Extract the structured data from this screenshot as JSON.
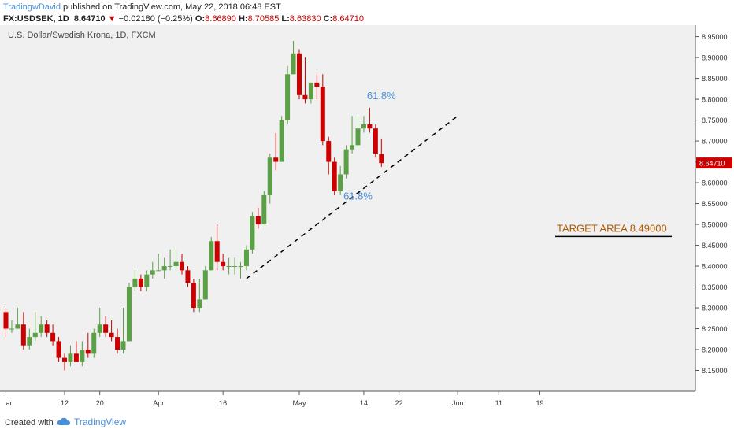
{
  "header": {
    "author": "TradingwDavid",
    "published_text": "published on TradingView.com, May 22, 2018 06:48 EST",
    "symbol": "FX:USDSEK, 1D",
    "last": "8.64710",
    "change_arrow": "▼",
    "change": "−0.02180 (−0.25%)",
    "open_label": "O:",
    "open": "8.66890",
    "high_label": "H:",
    "high": "8.70585",
    "low_label": "L:",
    "low": "8.63830",
    "close_label": "C:",
    "close": "8.64710"
  },
  "footer": {
    "created_with": "Created with",
    "brand": "TradingView",
    "brand_icon": "cloud-icon"
  },
  "colors": {
    "up": "#5b9f46",
    "down": "#cc0000",
    "fib": "#4a90d9",
    "target": "#b35900",
    "background": "#f0f0f0"
  },
  "chart_data": {
    "type": "candlestick",
    "title": "U.S. Dollar/Swedish Krona, 1D, FXCM",
    "ylim": [
      8.1,
      8.97
    ],
    "y_ticks": [
      "8.15000",
      "8.20000",
      "8.25000",
      "8.30000",
      "8.35000",
      "8.40000",
      "8.45000",
      "8.50000",
      "8.55000",
      "8.60000",
      "8.65000",
      "8.70000",
      "8.75000",
      "8.80000",
      "8.85000",
      "8.90000",
      "8.95000"
    ],
    "y_tick_values": [
      8.15,
      8.2,
      8.25,
      8.3,
      8.35,
      8.4,
      8.45,
      8.5,
      8.55,
      8.6,
      8.65,
      8.7,
      8.75,
      8.8,
      8.85,
      8.9,
      8.95
    ],
    "x_ticks": [
      {
        "label": "ar",
        "index": 0
      },
      {
        "label": "12",
        "index": 10
      },
      {
        "label": "20",
        "index": 16
      },
      {
        "label": "Apr",
        "index": 26
      },
      {
        "label": "16",
        "index": 37
      },
      {
        "label": "May",
        "index": 50
      },
      {
        "label": "14",
        "index": 61
      },
      {
        "label": "22",
        "index": 67
      },
      {
        "label": "Jun",
        "index": 77
      },
      {
        "label": "11",
        "index": 84
      },
      {
        "label": "19",
        "index": 91
      }
    ],
    "last_price_label": "8.64710",
    "last_price": 8.6471,
    "candles": [
      {
        "o": 8.29,
        "h": 8.3,
        "l": 8.23,
        "c": 8.25
      },
      {
        "o": 8.25,
        "h": 8.27,
        "l": 8.24,
        "c": 8.25
      },
      {
        "o": 8.25,
        "h": 8.3,
        "l": 8.25,
        "c": 8.26
      },
      {
        "o": 8.26,
        "h": 8.29,
        "l": 8.2,
        "c": 8.21
      },
      {
        "o": 8.21,
        "h": 8.25,
        "l": 8.2,
        "c": 8.23
      },
      {
        "o": 8.23,
        "h": 8.29,
        "l": 8.22,
        "c": 8.24
      },
      {
        "o": 8.24,
        "h": 8.28,
        "l": 8.23,
        "c": 8.26
      },
      {
        "o": 8.26,
        "h": 8.27,
        "l": 8.23,
        "c": 8.24
      },
      {
        "o": 8.24,
        "h": 8.26,
        "l": 8.21,
        "c": 8.22
      },
      {
        "o": 8.22,
        "h": 8.23,
        "l": 8.17,
        "c": 8.18
      },
      {
        "o": 8.18,
        "h": 8.19,
        "l": 8.15,
        "c": 8.17
      },
      {
        "o": 8.17,
        "h": 8.21,
        "l": 8.16,
        "c": 8.19
      },
      {
        "o": 8.19,
        "h": 8.22,
        "l": 8.17,
        "c": 8.17
      },
      {
        "o": 8.17,
        "h": 8.22,
        "l": 8.16,
        "c": 8.2
      },
      {
        "o": 8.2,
        "h": 8.24,
        "l": 8.18,
        "c": 8.19
      },
      {
        "o": 8.19,
        "h": 8.25,
        "l": 8.18,
        "c": 8.24
      },
      {
        "o": 8.24,
        "h": 8.3,
        "l": 8.23,
        "c": 8.26
      },
      {
        "o": 8.26,
        "h": 8.28,
        "l": 8.23,
        "c": 8.24
      },
      {
        "o": 8.24,
        "h": 8.27,
        "l": 8.22,
        "c": 8.23
      },
      {
        "o": 8.23,
        "h": 8.25,
        "l": 8.19,
        "c": 8.2
      },
      {
        "o": 8.2,
        "h": 8.3,
        "l": 8.19,
        "c": 8.22
      },
      {
        "o": 8.22,
        "h": 8.36,
        "l": 8.22,
        "c": 8.35
      },
      {
        "o": 8.35,
        "h": 8.39,
        "l": 8.34,
        "c": 8.37
      },
      {
        "o": 8.37,
        "h": 8.38,
        "l": 8.34,
        "c": 8.35
      },
      {
        "o": 8.35,
        "h": 8.39,
        "l": 8.34,
        "c": 8.38
      },
      {
        "o": 8.38,
        "h": 8.41,
        "l": 8.37,
        "c": 8.39
      },
      {
        "o": 8.39,
        "h": 8.43,
        "l": 8.39,
        "c": 8.39
      },
      {
        "o": 8.39,
        "h": 8.42,
        "l": 8.37,
        "c": 8.4
      },
      {
        "o": 8.4,
        "h": 8.44,
        "l": 8.39,
        "c": 8.4
      },
      {
        "o": 8.4,
        "h": 8.44,
        "l": 8.39,
        "c": 8.41
      },
      {
        "o": 8.41,
        "h": 8.43,
        "l": 8.38,
        "c": 8.39
      },
      {
        "o": 8.39,
        "h": 8.4,
        "l": 8.35,
        "c": 8.36
      },
      {
        "o": 8.36,
        "h": 8.37,
        "l": 8.29,
        "c": 8.3
      },
      {
        "o": 8.3,
        "h": 8.37,
        "l": 8.29,
        "c": 8.32
      },
      {
        "o": 8.32,
        "h": 8.4,
        "l": 8.32,
        "c": 8.39
      },
      {
        "o": 8.39,
        "h": 8.47,
        "l": 8.39,
        "c": 8.46
      },
      {
        "o": 8.46,
        "h": 8.5,
        "l": 8.39,
        "c": 8.41
      },
      {
        "o": 8.41,
        "h": 8.43,
        "l": 8.39,
        "c": 8.4
      },
      {
        "o": 8.4,
        "h": 8.42,
        "l": 8.38,
        "c": 8.4
      },
      {
        "o": 8.4,
        "h": 8.42,
        "l": 8.38,
        "c": 8.4
      },
      {
        "o": 8.4,
        "h": 8.41,
        "l": 8.37,
        "c": 8.4
      },
      {
        "o": 8.4,
        "h": 8.45,
        "l": 8.39,
        "c": 8.44
      },
      {
        "o": 8.44,
        "h": 8.53,
        "l": 8.43,
        "c": 8.52
      },
      {
        "o": 8.52,
        "h": 8.54,
        "l": 8.49,
        "c": 8.5
      },
      {
        "o": 8.5,
        "h": 8.58,
        "l": 8.5,
        "c": 8.57
      },
      {
        "o": 8.57,
        "h": 8.67,
        "l": 8.55,
        "c": 8.66
      },
      {
        "o": 8.66,
        "h": 8.72,
        "l": 8.63,
        "c": 8.65
      },
      {
        "o": 8.65,
        "h": 8.76,
        "l": 8.65,
        "c": 8.75
      },
      {
        "o": 8.75,
        "h": 8.88,
        "l": 8.74,
        "c": 8.86
      },
      {
        "o": 8.86,
        "h": 8.94,
        "l": 8.86,
        "c": 8.91
      },
      {
        "o": 8.91,
        "h": 8.92,
        "l": 8.8,
        "c": 8.81
      },
      {
        "o": 8.81,
        "h": 8.9,
        "l": 8.79,
        "c": 8.8
      },
      {
        "o": 8.8,
        "h": 8.84,
        "l": 8.79,
        "c": 8.84
      },
      {
        "o": 8.84,
        "h": 8.86,
        "l": 8.8,
        "c": 8.83
      },
      {
        "o": 8.83,
        "h": 8.86,
        "l": 8.69,
        "c": 8.7
      },
      {
        "o": 8.7,
        "h": 8.71,
        "l": 8.62,
        "c": 8.65
      },
      {
        "o": 8.65,
        "h": 8.66,
        "l": 8.57,
        "c": 8.58
      },
      {
        "o": 8.58,
        "h": 8.64,
        "l": 8.57,
        "c": 8.62
      },
      {
        "o": 8.62,
        "h": 8.69,
        "l": 8.61,
        "c": 8.68
      },
      {
        "o": 8.68,
        "h": 8.76,
        "l": 8.67,
        "c": 8.69
      },
      {
        "o": 8.69,
        "h": 8.76,
        "l": 8.68,
        "c": 8.73
      },
      {
        "o": 8.73,
        "h": 8.76,
        "l": 8.72,
        "c": 8.74
      },
      {
        "o": 8.74,
        "h": 8.78,
        "l": 8.72,
        "c": 8.73
      },
      {
        "o": 8.73,
        "h": 8.74,
        "l": 8.66,
        "c": 8.67
      },
      {
        "o": 8.669,
        "h": 8.706,
        "l": 8.638,
        "c": 8.647
      }
    ],
    "drawings": {
      "trendline": {
        "from": {
          "index": 41,
          "price": 8.37
        },
        "to": {
          "index": 77,
          "price": 8.76
        },
        "style": "dashed"
      },
      "target_label": "TARGET AREA 8.49000",
      "target_price": 8.49,
      "fib_labels": [
        {
          "text": "61.8%",
          "index": 64,
          "price": 8.8
        },
        {
          "text": "61.8%",
          "index": 60,
          "price": 8.56
        }
      ]
    }
  }
}
